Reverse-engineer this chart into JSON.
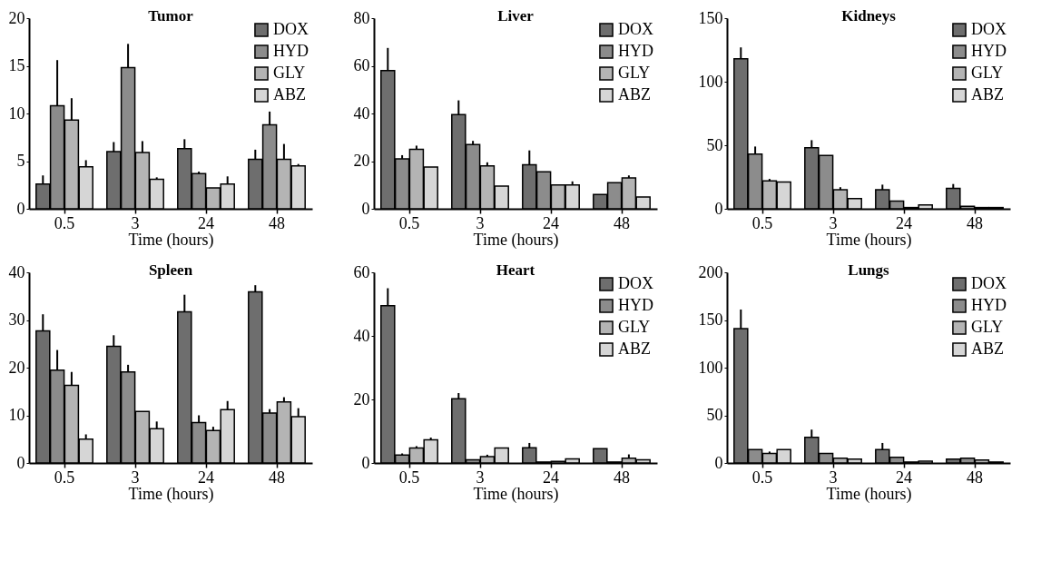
{
  "chart_data": [
    {
      "type": "bar",
      "title": "Tumor",
      "xlabel": "Time (hours)",
      "categories": [
        "0.5",
        "3",
        "24",
        "48"
      ],
      "ylim": [
        0,
        20
      ],
      "yticks": [
        0,
        5,
        10,
        15,
        20
      ],
      "grid": false,
      "legend": "top right",
      "series": [
        {
          "name": "DOX",
          "color": "#6e6e6e",
          "values": [
            2.6,
            6.0,
            6.3,
            5.2
          ],
          "errors": [
            [
              2.6,
              3.5
            ],
            [
              6.0,
              7.0
            ],
            [
              6.3,
              7.3
            ],
            [
              5.2,
              6.2
            ]
          ]
        },
        {
          "name": "HYD",
          "color": "#8c8c8c",
          "values": [
            10.8,
            14.8,
            3.7,
            8.8
          ],
          "errors": [
            [
              10.8,
              15.6
            ],
            [
              14.8,
              17.3
            ],
            [
              3.7,
              3.9
            ],
            [
              8.8,
              10.2
            ]
          ]
        },
        {
          "name": "GLY",
          "color": "#b4b4b4",
          "values": [
            9.3,
            5.9,
            2.2,
            5.2
          ],
          "errors": [
            [
              9.3,
              11.6
            ],
            [
              5.9,
              7.1
            ],
            null,
            [
              5.2,
              6.8
            ]
          ]
        },
        {
          "name": "ABZ",
          "color": "#d6d6d6",
          "values": [
            4.4,
            3.1,
            2.6,
            4.5
          ],
          "errors": [
            [
              4.4,
              5.1
            ],
            [
              3.1,
              3.3
            ],
            [
              2.6,
              3.4
            ],
            [
              4.5,
              4.7
            ]
          ]
        }
      ]
    },
    {
      "type": "bar",
      "title": "Liver",
      "xlabel": "Time (hours)",
      "categories": [
        "0.5",
        "3",
        "24",
        "48"
      ],
      "ylim": [
        0,
        80
      ],
      "yticks": [
        0,
        20,
        40,
        60,
        80
      ],
      "grid": false,
      "legend": "top right",
      "series": [
        {
          "name": "DOX",
          "color": "#6e6e6e",
          "values": [
            58,
            39.5,
            18.5,
            6
          ],
          "errors": [
            [
              58,
              67.5
            ],
            [
              39.5,
              45.5
            ],
            [
              18.5,
              24.5
            ],
            null
          ]
        },
        {
          "name": "HYD",
          "color": "#8c8c8c",
          "values": [
            21,
            27,
            15.5,
            11
          ],
          "errors": [
            [
              21,
              22.5
            ],
            [
              27,
              28.5
            ],
            null,
            null
          ]
        },
        {
          "name": "GLY",
          "color": "#b4b4b4",
          "values": [
            25,
            18,
            10,
            13
          ],
          "errors": [
            [
              25,
              26.5
            ],
            [
              18,
              19.5
            ],
            null,
            [
              13,
              14
            ]
          ]
        },
        {
          "name": "ABZ",
          "color": "#d6d6d6",
          "values": [
            17.5,
            9.5,
            10,
            5
          ],
          "errors": [
            null,
            null,
            [
              10,
              11.5
            ],
            null
          ]
        }
      ]
    },
    {
      "type": "bar",
      "title": "Kidneys",
      "xlabel": "Time (hours)",
      "categories": [
        "0.5",
        "3",
        "24",
        "48"
      ],
      "ylim": [
        0,
        150
      ],
      "yticks": [
        0,
        50,
        100,
        150
      ],
      "grid": false,
      "legend": "top right",
      "series": [
        {
          "name": "DOX",
          "color": "#6e6e6e",
          "values": [
            118,
            48,
            15,
            16
          ],
          "errors": [
            [
              118,
              127
            ],
            [
              48,
              54
            ],
            [
              15,
              19
            ],
            [
              16,
              19.5
            ]
          ]
        },
        {
          "name": "HYD",
          "color": "#8c8c8c",
          "values": [
            43,
            42,
            6,
            2
          ],
          "errors": [
            [
              43,
              49
            ],
            null,
            null,
            null
          ]
        },
        {
          "name": "GLY",
          "color": "#b4b4b4",
          "values": [
            22,
            15,
            1,
            1
          ],
          "errors": [
            [
              22,
              23.5
            ],
            [
              15,
              17
            ],
            null,
            null
          ]
        },
        {
          "name": "ABZ",
          "color": "#d6d6d6",
          "values": [
            21,
            8,
            3,
            1
          ],
          "errors": [
            null,
            null,
            null,
            null
          ]
        }
      ]
    },
    {
      "type": "bar",
      "title": "Spleen",
      "xlabel": "Time (hours)",
      "categories": [
        "0.5",
        "3",
        "24",
        "48"
      ],
      "ylim": [
        0,
        40
      ],
      "yticks": [
        0,
        10,
        20,
        30,
        40
      ],
      "grid": false,
      "legend": false,
      "series": [
        {
          "color": "#6e6e6e",
          "values": [
            27.7,
            24.5,
            31.7,
            35.9
          ],
          "errors": [
            [
              27.7,
              31.2
            ],
            [
              24.5,
              26.8
            ],
            [
              31.7,
              35.3
            ],
            [
              35.9,
              37.3
            ]
          ]
        },
        {
          "color": "#8c8c8c",
          "values": [
            19.5,
            19.1,
            8.5,
            10.5
          ],
          "errors": [
            [
              19.5,
              23.7
            ],
            [
              19.1,
              20.6
            ],
            [
              8.5,
              10
            ],
            [
              10.5,
              11.3
            ]
          ]
        },
        {
          "color": "#b4b4b4",
          "values": [
            16.3,
            10.8,
            6.8,
            12.8
          ],
          "errors": [
            [
              16.3,
              19.1
            ],
            null,
            [
              6.8,
              7.6
            ],
            [
              12.8,
              13.8
            ]
          ]
        },
        {
          "color": "#d6d6d6",
          "values": [
            5,
            7.2,
            11.2,
            9.7
          ],
          "errors": [
            [
              5,
              6
            ],
            [
              7.2,
              8.7
            ],
            [
              11.2,
              13
            ],
            [
              9.7,
              11.5
            ]
          ]
        }
      ]
    },
    {
      "type": "bar",
      "title": "Heart",
      "xlabel": "Time (hours)",
      "categories": [
        "0.5",
        "3",
        "24",
        "48"
      ],
      "ylim": [
        0,
        60
      ],
      "yticks": [
        0,
        20,
        40,
        60
      ],
      "grid": false,
      "legend": "top right",
      "series": [
        {
          "name": "DOX",
          "color": "#6e6e6e",
          "values": [
            49.5,
            20.2,
            4.8,
            4.5
          ],
          "errors": [
            [
              49.5,
              55
            ],
            [
              20.2,
              22
            ],
            [
              4.8,
              6.3
            ],
            null
          ]
        },
        {
          "name": "HYD",
          "color": "#8c8c8c",
          "values": [
            2.5,
            1,
            0.3,
            0.3
          ],
          "errors": [
            [
              2.5,
              3
            ],
            null,
            null,
            null
          ]
        },
        {
          "name": "GLY",
          "color": "#b4b4b4",
          "values": [
            4.7,
            2,
            0.5,
            1.5
          ],
          "errors": [
            [
              4.7,
              5.3
            ],
            [
              2,
              2.6
            ],
            null,
            [
              1.5,
              2.7
            ]
          ]
        },
        {
          "name": "ABZ",
          "color": "#d6d6d6",
          "values": [
            7.3,
            4.7,
            1.3,
            1
          ],
          "errors": [
            [
              7.3,
              8
            ],
            null,
            null,
            null
          ]
        }
      ]
    },
    {
      "type": "bar",
      "title": "Lungs",
      "xlabel": "Time (hours)",
      "categories": [
        "0.5",
        "3",
        "24",
        "48"
      ],
      "ylim": [
        0,
        200
      ],
      "yticks": [
        0,
        50,
        100,
        150,
        200
      ],
      "grid": false,
      "legend": "top right",
      "series": [
        {
          "name": "DOX",
          "color": "#6e6e6e",
          "values": [
            141,
            27,
            14,
            4
          ],
          "errors": [
            [
              141,
              161
            ],
            [
              27,
              35
            ],
            [
              14,
              21
            ],
            null
          ]
        },
        {
          "name": "HYD",
          "color": "#8c8c8c",
          "values": [
            14,
            10,
            6,
            5
          ],
          "errors": [
            null,
            null,
            null,
            null
          ]
        },
        {
          "name": "GLY",
          "color": "#b4b4b4",
          "values": [
            10,
            5,
            1,
            3
          ],
          "errors": [
            [
              10,
              12
            ],
            null,
            null,
            null
          ]
        },
        {
          "name": "ABZ",
          "color": "#d6d6d6",
          "values": [
            14,
            4,
            2,
            1
          ],
          "errors": [
            null,
            null,
            null,
            null
          ]
        }
      ]
    }
  ]
}
